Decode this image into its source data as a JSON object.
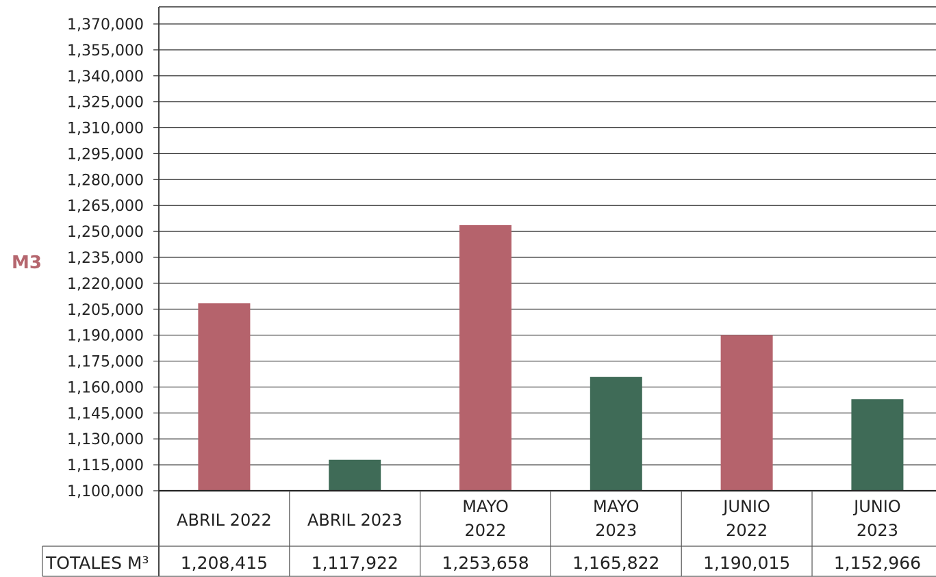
{
  "chart_data": {
    "type": "bar",
    "ylabel": "M3",
    "ylim": [
      1100000,
      1370000
    ],
    "yticks": [
      1100000,
      1115000,
      1130000,
      1145000,
      1160000,
      1175000,
      1190000,
      1205000,
      1220000,
      1235000,
      1250000,
      1265000,
      1280000,
      1295000,
      1310000,
      1325000,
      1340000,
      1355000,
      1370000
    ],
    "ytick_labels": [
      "1,100,000",
      "1,115,000",
      "1,130,000",
      "1,145,000",
      "1,160,000",
      "1,175,000",
      "1,190,000",
      "1,205,000",
      "1,220,000",
      "1,235,000",
      "1,250,000",
      "1,265,000",
      "1,280,000",
      "1,295,000",
      "1,310,000",
      "1,325,000",
      "1,340,000",
      "1,355,000",
      "1,370,000"
    ],
    "grid": true,
    "categories": [
      {
        "lines": [
          "ABRIL 2022"
        ],
        "year": "2022"
      },
      {
        "lines": [
          "ABRIL 2023"
        ],
        "year": "2023"
      },
      {
        "lines": [
          "MAYO",
          "2022"
        ],
        "year": "2022"
      },
      {
        "lines": [
          "MAYO",
          "2023"
        ],
        "year": "2023"
      },
      {
        "lines": [
          "JUNIO",
          "2022"
        ],
        "year": "2022"
      },
      {
        "lines": [
          "JUNIO",
          "2023"
        ],
        "year": "2023"
      }
    ],
    "values": [
      1208415,
      1117922,
      1253658,
      1165822,
      1190015,
      1152966
    ],
    "table": {
      "row_label": "TOTALES M³",
      "cells": [
        "1,208,415",
        "1,117,922",
        "1,253,658",
        "1,165,822",
        "1,190,015",
        "1,152,966"
      ]
    },
    "colors": {
      "2022": "#b5636c",
      "2023": "#3f6b57"
    }
  }
}
